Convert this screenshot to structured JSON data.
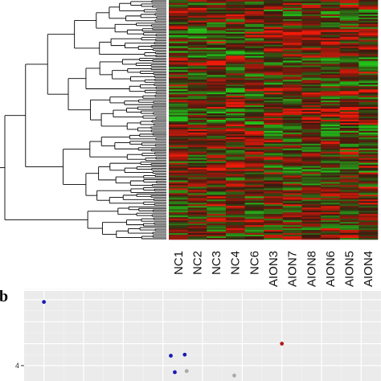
{
  "chart_data": [
    {
      "type": "heatmap",
      "title": "",
      "columns": [
        "NC1",
        "NC2",
        "NC3",
        "NC4",
        "NC6",
        "AION3",
        "AION7",
        "AION8",
        "AION6",
        "AION5",
        "AION4"
      ],
      "groups": [
        "NC",
        "NC",
        "NC",
        "NC",
        "NC",
        "AION",
        "AION",
        "AION",
        "AION",
        "AION",
        "AION"
      ],
      "row_dendrogram": true,
      "color_scale": {
        "low": "#22c21a",
        "mid": "#3a1a10",
        "high": "#f01a0a"
      },
      "legend": "none"
    },
    {
      "type": "scatter",
      "panel_label": "b",
      "background": "#ebebeb",
      "grid": true,
      "y_ticks": [
        4
      ],
      "points": [
        {
          "x": 1.0,
          "y": 6.9,
          "color": "#1a1ab4"
        },
        {
          "x": 4.2,
          "y": 4.45,
          "color": "#1a1ab4"
        },
        {
          "x": 4.55,
          "y": 4.5,
          "color": "#1a1ab4"
        },
        {
          "x": 4.3,
          "y": 3.7,
          "color": "#1a1ab4"
        },
        {
          "x": 4.6,
          "y": 3.75,
          "color": "#aaaaaa"
        },
        {
          "x": 5.8,
          "y": 3.55,
          "color": "#aaaaaa"
        },
        {
          "x": 7.0,
          "y": 5.0,
          "color": "#b41a1a"
        }
      ],
      "xlim": [
        0.5,
        9.5
      ],
      "ylim": [
        3.3,
        7.4
      ]
    }
  ]
}
